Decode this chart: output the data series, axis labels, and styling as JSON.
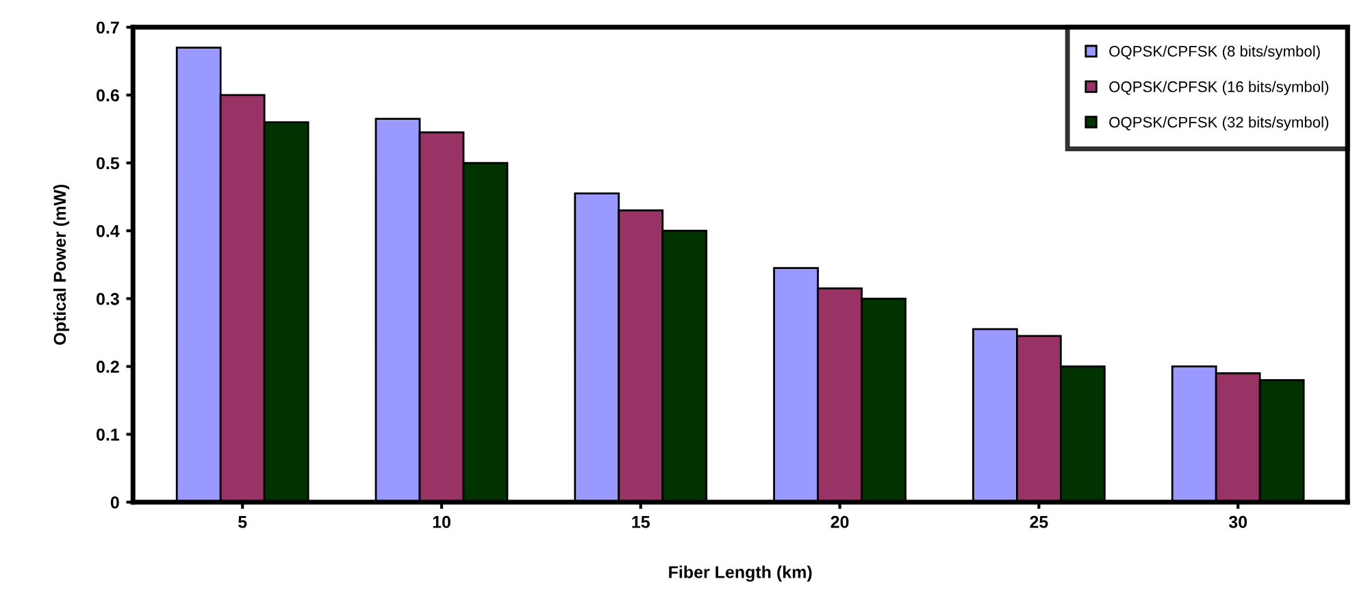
{
  "chart_data": {
    "type": "bar",
    "xlabel": "Fiber Length (km)",
    "ylabel": "Optical Power (mW)",
    "categories": [
      "5",
      "10",
      "15",
      "20",
      "25",
      "30"
    ],
    "series": [
      {
        "name": "OQPSK/CPFSK (8 bits/symbol)",
        "color": "#9999ff",
        "values": [
          0.67,
          0.565,
          0.455,
          0.345,
          0.255,
          0.2
        ]
      },
      {
        "name": "OQPSK/CPFSK (16 bits/symbol)",
        "color": "#993366",
        "values": [
          0.6,
          0.545,
          0.43,
          0.315,
          0.245,
          0.19
        ]
      },
      {
        "name": "OQPSK/CPFSK (32 bits/symbol)",
        "color": "#003300",
        "values": [
          0.56,
          0.5,
          0.4,
          0.3,
          0.2,
          0.18
        ]
      }
    ],
    "ylim": [
      0,
      0.7
    ],
    "yticks": [
      0,
      0.1,
      0.2,
      0.3,
      0.4,
      0.5,
      0.6,
      0.7
    ],
    "grid": false,
    "legend": "top right"
  }
}
